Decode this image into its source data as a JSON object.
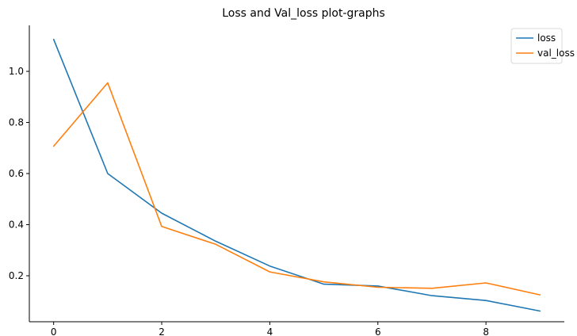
{
  "chart_data": {
    "type": "line",
    "title": "Loss and Val_loss plot-graphs",
    "xlabel": "",
    "ylabel": "",
    "x": [
      0,
      1,
      2,
      3,
      4,
      5,
      6,
      7,
      8,
      9
    ],
    "xlim": [
      -0.45,
      9.45
    ],
    "ylim": [
      0.02,
      1.18
    ],
    "xticks": [
      0,
      2,
      4,
      6,
      8
    ],
    "yticks": [
      0.2,
      0.4,
      0.6,
      0.8,
      1.0
    ],
    "xtick_labels": [
      "0",
      "2",
      "4",
      "6",
      "8"
    ],
    "ytick_labels": [
      "0.2",
      "0.4",
      "0.6",
      "0.8",
      "1.0"
    ],
    "grid": false,
    "legend_position": "top-right",
    "series": [
      {
        "name": "loss",
        "color": "#1f77b4",
        "values": [
          1.125,
          0.6,
          0.445,
          0.335,
          0.238,
          0.167,
          0.16,
          0.122,
          0.103,
          0.062
        ]
      },
      {
        "name": "val_loss",
        "color": "#ff7f0e",
        "values": [
          0.707,
          0.955,
          0.393,
          0.323,
          0.215,
          0.176,
          0.155,
          0.151,
          0.172,
          0.125
        ]
      }
    ]
  }
}
